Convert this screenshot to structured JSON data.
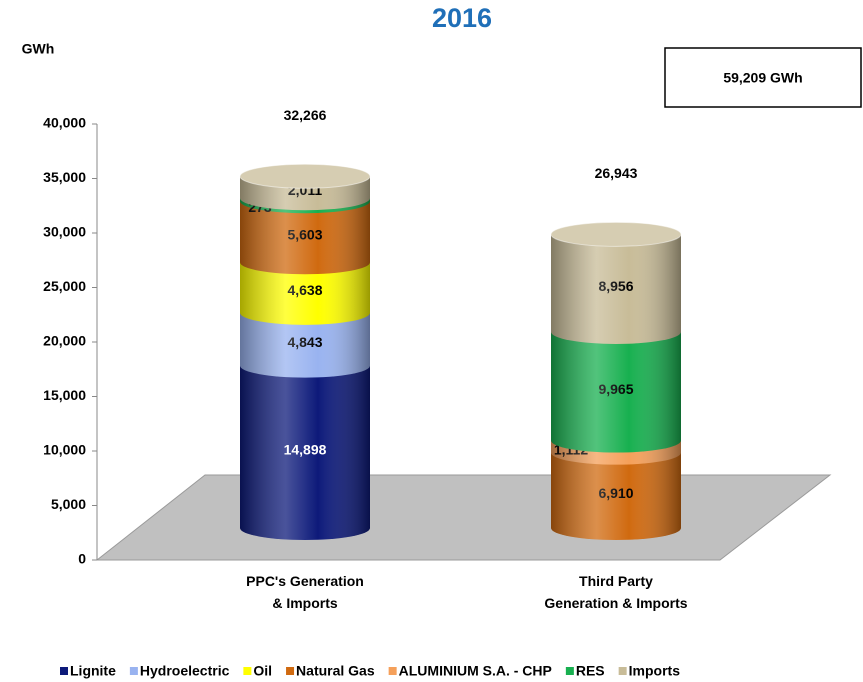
{
  "chart_data": {
    "type": "stacked-cylinder",
    "title": "2016",
    "y_label": "GWh",
    "annotation": "59,209 GWh",
    "categories": [
      "PPC's Generation\n& Imports",
      "Third Party\nGeneration & Imports"
    ],
    "totals": [
      32266,
      26943
    ],
    "total_labels": [
      "32,266",
      "26,943"
    ],
    "series": [
      {
        "name": "Lignite",
        "color": "#0d1a7a",
        "label_color": "#ffffff",
        "values": [
          14898,
          null
        ],
        "value_labels": [
          "14,898",
          null
        ]
      },
      {
        "name": "Hydroelectric",
        "color": "#99b3f0",
        "label_color": "#000000",
        "values": [
          4843,
          null
        ],
        "value_labels": [
          "4,843",
          null
        ]
      },
      {
        "name": "Oil",
        "color": "#ffff00",
        "label_color": "#000000",
        "values": [
          4638,
          null
        ],
        "value_labels": [
          "4,638",
          null
        ]
      },
      {
        "name": "Natural Gas",
        "color": "#d06a10",
        "label_color": "#000000",
        "values": [
          5603,
          6910
        ],
        "value_labels": [
          "5,603",
          "6,910"
        ]
      },
      {
        "name": "ALUMINIUM S.A. - CHP",
        "color": "#f5a05a",
        "label_color": "#000000",
        "values": [
          null,
          1112
        ],
        "value_labels": [
          null,
          "1,112"
        ]
      },
      {
        "name": "RES",
        "color": "#18b050",
        "label_color": "#000000",
        "values": [
          273,
          9965
        ],
        "value_labels": [
          "273",
          "9,965"
        ]
      },
      {
        "name": "Imports",
        "color": "#c8bc98",
        "label_color": "#000000",
        "values": [
          2011,
          8956
        ],
        "value_labels": [
          "2,011",
          "8,956"
        ]
      }
    ],
    "ylim": [
      0,
      40000
    ],
    "yticks": [
      0,
      {
        "value": 5000,
        "label": "5,000"
      },
      {
        "value": 10000,
        "label": "10,000"
      },
      {
        "value": 15000,
        "label": "15,000"
      },
      {
        "value": 20000,
        "label": "20,000"
      },
      {
        "value": 25000,
        "label": "25,000"
      },
      {
        "value": 30000,
        "label": "30,000"
      },
      {
        "value": 35000,
        "label": "35,000"
      },
      {
        "value": 40000,
        "label": "40,000"
      }
    ],
    "legend": "bottom"
  }
}
